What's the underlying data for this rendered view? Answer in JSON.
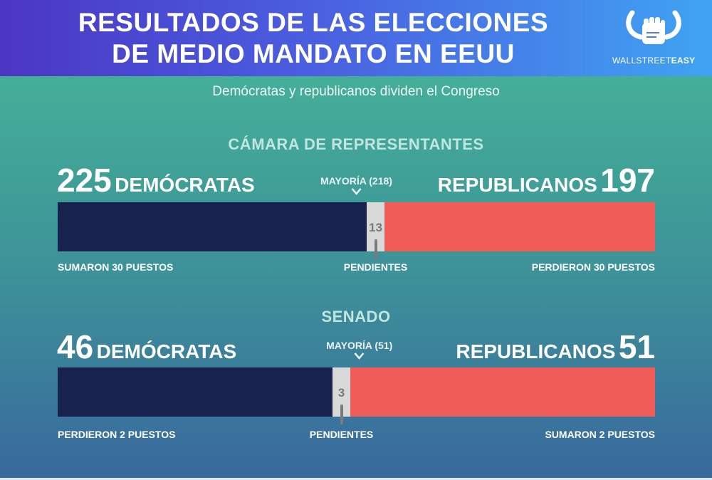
{
  "header": {
    "title_line1": "RESULTADOS DE LAS ELECCIONES",
    "title_line2": "DE MEDIO MANDATO EN EEUU",
    "logo": {
      "text_light": "WALLSTREET",
      "text_bold": "EASY",
      "icon": "fist-bull-horns-icon"
    }
  },
  "subtitle": "Demócratas y republicanos dividen el Congreso",
  "colors": {
    "democrats": "#17234e",
    "pending": "#d8d8d8",
    "republicans": "#f05c57"
  },
  "chart_data": [
    {
      "type": "bar",
      "title": "CÁMARA DE REPRESENTANTES",
      "stacked": true,
      "series": [
        {
          "name": "DEMÓCRATAS",
          "value": 225,
          "note": "SUMARON 30 PUESTOS"
        },
        {
          "name": "PENDIENTES",
          "value": 13
        },
        {
          "name": "REPUBLICANOS",
          "value": 197,
          "note": "PERDIERON 30 PUESTOS"
        }
      ],
      "majority_label": "MAYORÍA (218)",
      "majority": 218,
      "total": 435
    },
    {
      "type": "bar",
      "title": "SENADO",
      "stacked": true,
      "series": [
        {
          "name": "DEMÓCRATAS",
          "value": 46,
          "note": "PERDIERON 2 PUESTOS"
        },
        {
          "name": "PENDIENTES",
          "value": 3
        },
        {
          "name": "REPUBLICANOS",
          "value": 51,
          "note": "SUMARON 2 PUESTOS"
        }
      ],
      "majority_label": "MAYORÍA (51)",
      "majority": 51,
      "total": 100
    }
  ]
}
